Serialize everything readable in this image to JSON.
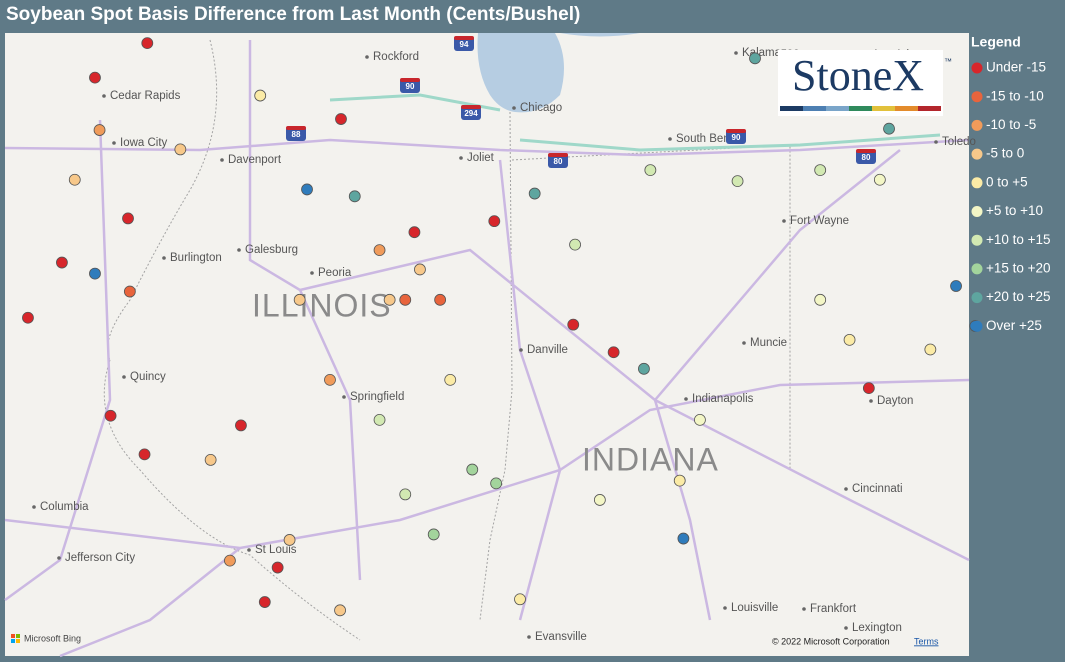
{
  "title": "Soybean Spot Basis Difference from Last Month (Cents/Bushel)",
  "legend": {
    "title": "Legend",
    "items": [
      {
        "label": "Under -15",
        "color": "#d7262b"
      },
      {
        "label": "-15 to -10",
        "color": "#e8643c"
      },
      {
        "label": "-10 to -5",
        "color": "#f09b5a"
      },
      {
        "label": "-5 to 0",
        "color": "#f7c88a"
      },
      {
        "label": "0 to +5",
        "color": "#fbeba6"
      },
      {
        "label": "+5 to +10",
        "color": "#f3f6c6"
      },
      {
        "label": "+10 to +15",
        "color": "#d2e9b2"
      },
      {
        "label": "+15 to +20",
        "color": "#a3d49c"
      },
      {
        "label": "+20 to +25",
        "color": "#5ea59f"
      },
      {
        "label": "Over +25",
        "color": "#2f7cbc"
      }
    ]
  },
  "logo": {
    "name": "StoneX",
    "mark": "™"
  },
  "map": {
    "labels": [
      "Cedar Rapids",
      "Iowa City",
      "Davenport",
      "Burlington",
      "Quincy",
      "Columbia",
      "Jefferson City",
      "St Louis",
      "Springfield",
      "Peoria",
      "Galesburg",
      "Rockford",
      "Chicago",
      "Joliet",
      "South Bend",
      "Kalamazoo",
      "Ann Arbor",
      "Toledo",
      "Fort Wayne",
      "Muncie",
      "Danville",
      "Indianapolis",
      "Dayton",
      "Cincinnati",
      "Louisville",
      "Frankfort",
      "Lexington",
      "Evansville"
    ],
    "states": [
      "ILLINOIS",
      "INDIANA"
    ],
    "shields": [
      "94",
      "90",
      "294",
      "88",
      "80",
      "90",
      "80"
    ],
    "attribution": "© 2022 Microsoft Corporation",
    "terms": "Terms",
    "provider": "Microsoft Bing"
  },
  "markers": [
    {
      "lon": -91.69,
      "lat": 42.35,
      "class": 0
    },
    {
      "lon": -92.26,
      "lat": 42.1,
      "class": 0
    },
    {
      "lon": -91.9,
      "lat": 41.08,
      "class": 0
    },
    {
      "lon": -92.62,
      "lat": 40.76,
      "class": 0
    },
    {
      "lon": -92.26,
      "lat": 40.68,
      "class": 9
    },
    {
      "lon": -92.99,
      "lat": 40.36,
      "class": 0
    },
    {
      "lon": -92.09,
      "lat": 39.65,
      "class": 0
    },
    {
      "lon": -91.72,
      "lat": 39.37,
      "class": 0
    },
    {
      "lon": -90.67,
      "lat": 39.58,
      "class": 0
    },
    {
      "lon": -90.41,
      "lat": 38.3,
      "class": 0
    },
    {
      "lon": -90.27,
      "lat": 38.55,
      "class": 0
    },
    {
      "lon": -88.78,
      "lat": 40.98,
      "class": 0
    },
    {
      "lon": -87.05,
      "lat": 40.31,
      "class": 0
    },
    {
      "lon": -86.61,
      "lat": 40.11,
      "class": 0
    },
    {
      "lon": -83.83,
      "lat": 39.85,
      "class": 0
    },
    {
      "lon": -87.91,
      "lat": 41.06,
      "class": 0
    },
    {
      "lon": -89.58,
      "lat": 41.8,
      "class": 0
    },
    {
      "lon": -89.95,
      "lat": 41.29,
      "class": 9
    },
    {
      "lon": -89.43,
      "lat": 41.24,
      "class": 8
    },
    {
      "lon": -87.47,
      "lat": 41.26,
      "class": 8
    },
    {
      "lon": -85.85,
      "lat": 38.76,
      "class": 9
    },
    {
      "lon": -86.28,
      "lat": 39.99,
      "class": 8
    },
    {
      "lon": -85.07,
      "lat": 42.24,
      "class": 8
    },
    {
      "lon": -83.61,
      "lat": 41.73,
      "class": 8
    },
    {
      "lon": -82.88,
      "lat": 40.59,
      "class": 9
    },
    {
      "lon": -82.67,
      "lat": 40.3,
      "class": 9
    },
    {
      "lon": -88.15,
      "lat": 39.26,
      "class": 7
    },
    {
      "lon": -87.89,
      "lat": 39.16,
      "class": 7
    },
    {
      "lon": -88.57,
      "lat": 38.79,
      "class": 7
    },
    {
      "lon": -85.26,
      "lat": 41.35,
      "class": 6
    },
    {
      "lon": -86.21,
      "lat": 41.43,
      "class": 6
    },
    {
      "lon": -87.03,
      "lat": 40.89,
      "class": 6
    },
    {
      "lon": -89.16,
      "lat": 39.62,
      "class": 6
    },
    {
      "lon": -88.88,
      "lat": 39.08,
      "class": 6
    },
    {
      "lon": -89.05,
      "lat": 40.49,
      "class": 3
    },
    {
      "lon": -88.72,
      "lat": 40.71,
      "class": 3
    },
    {
      "lon": -90.03,
      "lat": 40.49,
      "class": 3
    },
    {
      "lon": -91.33,
      "lat": 41.58,
      "class": 3
    },
    {
      "lon": -92.48,
      "lat": 41.36,
      "class": 3
    },
    {
      "lon": -91.0,
      "lat": 39.33,
      "class": 3
    },
    {
      "lon": -90.14,
      "lat": 38.75,
      "class": 3
    },
    {
      "lon": -89.59,
      "lat": 38.24,
      "class": 3
    },
    {
      "lon": -88.39,
      "lat": 39.91,
      "class": 4
    },
    {
      "lon": -85.89,
      "lat": 39.18,
      "class": 4
    },
    {
      "lon": -84.04,
      "lat": 40.2,
      "class": 4
    },
    {
      "lon": -87.63,
      "lat": 38.32,
      "class": 4
    },
    {
      "lon": -83.71,
      "lat": 41.36,
      "class": 5
    },
    {
      "lon": -84.36,
      "lat": 40.49,
      "class": 5
    },
    {
      "lon": -90.46,
      "lat": 41.97,
      "class": 4
    },
    {
      "lon": -84.36,
      "lat": 41.43,
      "class": 6
    },
    {
      "lon": -90.79,
      "lat": 38.6,
      "class": 2
    },
    {
      "lon": -92.21,
      "lat": 41.72,
      "class": 2
    },
    {
      "lon": -89.7,
      "lat": 39.91,
      "class": 2
    },
    {
      "lon": -88.5,
      "lat": 40.49,
      "class": 1
    },
    {
      "lon": -88.88,
      "lat": 40.49,
      "class": 1
    },
    {
      "lon": -91.88,
      "lat": 40.55,
      "class": 1
    },
    {
      "lon": -89.16,
      "lat": 40.85,
      "class": 2
    },
    {
      "lon": -86.76,
      "lat": 39.04,
      "class": 5
    },
    {
      "lon": -85.67,
      "lat": 39.62,
      "class": 5
    },
    {
      "lon": -83.16,
      "lat": 40.13,
      "class": 4
    }
  ]
}
